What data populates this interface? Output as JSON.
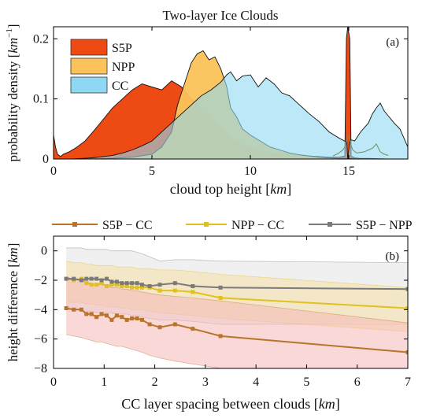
{
  "chart_data": [
    {
      "type": "area",
      "title": "Two-layer Ice Clouds",
      "panel_label": "(a)",
      "xlabel": "cloud top height",
      "xunit": "km",
      "ylabel": "probability density",
      "yunit": "km",
      "yunit_exp": "−1",
      "xlim": [
        0,
        18
      ],
      "ylim": [
        0,
        0.22
      ],
      "xticks": [
        "0",
        "5",
        "10",
        "15"
      ],
      "yticks": [
        "0",
        "0.1",
        "0.2"
      ],
      "legend_position": "top-left",
      "series": [
        {
          "name": "CC",
          "color": "#8fd8f4",
          "x": [
            0,
            1,
            1.5,
            2,
            2.5,
            3,
            3.5,
            4,
            4.5,
            5,
            5.5,
            6,
            6.5,
            7,
            7.5,
            8,
            8.5,
            8.8,
            9,
            9.3,
            9.6,
            10,
            10.4,
            10.8,
            11.2,
            11.6,
            12,
            12.5,
            13,
            13.5,
            14,
            14.5,
            14.9,
            14.95,
            15.05,
            15.1,
            15.3,
            15.6,
            16,
            16.2,
            16.4,
            16.6,
            16.8,
            17,
            17.3,
            17.6,
            18
          ],
          "y": [
            0,
            0,
            0.001,
            0.002,
            0.004,
            0.006,
            0.01,
            0.015,
            0.022,
            0.03,
            0.045,
            0.06,
            0.075,
            0.09,
            0.105,
            0.115,
            0.128,
            0.14,
            0.145,
            0.13,
            0.138,
            0.14,
            0.12,
            0.135,
            0.125,
            0.11,
            0.105,
            0.09,
            0.075,
            0.062,
            0.045,
            0.035,
            0.028,
            0.0,
            0.03,
            0.032,
            0.03,
            0.045,
            0.06,
            0.075,
            0.085,
            0.093,
            0.08,
            0.072,
            0.06,
            0.05,
            0.02
          ]
        },
        {
          "name": "NPP",
          "color": "#fbc35a",
          "x": [
            0,
            1,
            2,
            3,
            4,
            5,
            5.5,
            6,
            6.3,
            6.6,
            7,
            7.3,
            7.6,
            7.9,
            8.2,
            8.5,
            8.8,
            9,
            9.3,
            9.6,
            10,
            10.5,
            11,
            11.5,
            12,
            12.5,
            13,
            13.5,
            14,
            14.5,
            15,
            15.5,
            16,
            17,
            18
          ],
          "y": [
            0,
            0,
            0,
            0.001,
            0.003,
            0.008,
            0.02,
            0.045,
            0.09,
            0.12,
            0.16,
            0.175,
            0.18,
            0.165,
            0.17,
            0.15,
            0.12,
            0.085,
            0.07,
            0.05,
            0.04,
            0.03,
            0.02,
            0.015,
            0.01,
            0.007,
            0.005,
            0.003,
            0.002,
            0.001,
            0.001,
            0,
            0,
            0,
            0
          ]
        },
        {
          "name": "S5P",
          "color": "#ee4a14",
          "x": [
            0,
            0.1,
            0.2,
            0.35,
            0.5,
            0.8,
            1.2,
            1.6,
            2,
            2.5,
            3,
            3.5,
            4,
            4.5,
            5,
            5.5,
            6,
            6.5,
            7,
            7.5,
            8,
            8.5,
            9,
            9.5,
            10,
            10.5,
            11,
            11.5,
            12,
            12.5,
            13,
            13.5,
            14,
            14.5,
            14.8,
            14.88,
            14.95,
            15.05,
            15.12,
            15.3,
            15.6,
            16,
            17,
            18
          ],
          "y": [
            0.04,
            0.02,
            0.008,
            0.004,
            0.008,
            0.012,
            0.02,
            0.03,
            0.045,
            0.065,
            0.085,
            0.1,
            0.115,
            0.125,
            0.12,
            0.115,
            0.13,
            0.12,
            0.1,
            0.08,
            0.065,
            0.05,
            0.035,
            0.025,
            0.018,
            0.013,
            0.01,
            0.008,
            0.007,
            0.006,
            0.005,
            0.004,
            0.003,
            0.003,
            0.005,
            0.2,
            0.22,
            0.2,
            0.005,
            0.002,
            0.001,
            0.001,
            0,
            0
          ]
        }
      ],
      "overlap_colors": {
        "NPP_over_S5P": "#f6951c",
        "CC_over_S5P": "#7a9a6c",
        "CC_over_NPP": "#8aa676"
      },
      "extra_line": {
        "x": [
          14.2,
          14.5,
          14.7,
          14.8,
          14.9,
          15,
          15.1,
          15.2,
          15.4,
          15.8,
          16,
          16.2,
          16.4,
          16.6,
          16.8,
          17
        ],
        "y": [
          0.005,
          0.01,
          0.015,
          0.02,
          0.03,
          0.04,
          0.025,
          0.015,
          0.01,
          0.012,
          0.015,
          0.018,
          0.025,
          0.012,
          0.008,
          0.006
        ]
      }
    },
    {
      "type": "line",
      "panel_label": "(b)",
      "xlabel": "CC layer spacing between clouds",
      "xunit": "km",
      "ylabel": "height difference",
      "yunit": "km",
      "xlim": [
        0,
        7
      ],
      "ylim": [
        -8,
        1
      ],
      "xticks": [
        "0",
        "1",
        "2",
        "3",
        "4",
        "5",
        "6",
        "7"
      ],
      "yticks": [
        "0",
        "−2",
        "−4",
        "−6",
        "−8"
      ],
      "legend_position": "top-outside",
      "x": [
        0.25,
        0.4,
        0.55,
        0.65,
        0.75,
        0.85,
        0.95,
        1.05,
        1.15,
        1.25,
        1.35,
        1.45,
        1.55,
        1.65,
        1.75,
        1.9,
        2.1,
        2.4,
        2.75,
        3.3,
        7.0
      ],
      "series": [
        {
          "name": "S5P − CC",
          "color": "#b8742a",
          "band_color": "#f6b8b8",
          "values": [
            -3.9,
            -4.0,
            -4.0,
            -4.3,
            -4.3,
            -4.5,
            -4.3,
            -4.4,
            -4.7,
            -4.4,
            -4.5,
            -4.7,
            -4.6,
            -4.6,
            -4.7,
            -5.0,
            -5.2,
            -5.0,
            -5.3,
            -5.8,
            -6.9
          ],
          "upper": [
            -1.8,
            -1.9,
            -2.0,
            -2.1,
            -2.2,
            -2.3,
            -2.3,
            -2.4,
            -2.5,
            -2.5,
            -2.6,
            -2.6,
            -2.7,
            -2.7,
            -2.8,
            -2.9,
            -3.0,
            -3.1,
            -3.2,
            -3.4,
            -4.9
          ],
          "lower": [
            -5.7,
            -5.8,
            -5.9,
            -6.0,
            -6.1,
            -6.2,
            -6.2,
            -6.3,
            -6.4,
            -6.5,
            -6.5,
            -6.6,
            -6.7,
            -6.8,
            -6.9,
            -7.1,
            -7.3,
            -7.5,
            -7.7,
            -8.0,
            -8.0
          ]
        },
        {
          "name": "NPP − CC",
          "color": "#e0c11e",
          "band_color": "#f7e0a8",
          "values": [
            -1.9,
            -2.0,
            -1.9,
            -2.2,
            -2.3,
            -2.3,
            -2.2,
            -2.4,
            -2.3,
            -2.3,
            -2.4,
            -2.4,
            -2.5,
            -2.5,
            -2.5,
            -2.5,
            -2.7,
            -2.7,
            -2.8,
            -3.2,
            -3.9
          ],
          "upper": [
            -0.7,
            -0.8,
            -0.8,
            -0.9,
            -0.9,
            -1.0,
            -1.0,
            -1.0,
            -1.0,
            -1.1,
            -1.1,
            -1.1,
            -1.1,
            -1.2,
            -1.2,
            -1.2,
            -1.3,
            -1.3,
            -1.4,
            -1.6,
            -2.5
          ],
          "lower": [
            -3.5,
            -3.5,
            -3.5,
            -3.6,
            -3.6,
            -3.7,
            -3.7,
            -3.8,
            -3.8,
            -3.8,
            -3.9,
            -3.9,
            -4.0,
            -4.0,
            -4.0,
            -4.1,
            -4.2,
            -4.3,
            -4.4,
            -4.6,
            -5.5
          ]
        },
        {
          "name": "S5P − NPP",
          "color": "#7a7a7a",
          "band_color": "#e4e4e4",
          "values": [
            -1.9,
            -1.9,
            -2.0,
            -1.9,
            -1.9,
            -1.9,
            -2.0,
            -1.9,
            -2.1,
            -2.1,
            -2.2,
            -2.2,
            -2.2,
            -2.2,
            -2.3,
            -2.4,
            -2.3,
            -2.2,
            -2.4,
            -2.5,
            -2.6
          ],
          "upper": [
            0.2,
            0.2,
            0.2,
            0.1,
            0.1,
            0.1,
            0.1,
            0.1,
            0.0,
            0.0,
            0.0,
            0.0,
            0.0,
            -0.1,
            -0.2,
            -0.4,
            -0.7,
            -0.6,
            -0.6,
            -0.7,
            -0.8
          ],
          "lower": [
            -4.0,
            -4.0,
            -4.1,
            -4.1,
            -4.1,
            -4.2,
            -4.2,
            -4.2,
            -4.2,
            -4.3,
            -4.3,
            -4.3,
            -4.4,
            -4.4,
            -4.5,
            -4.6,
            -4.7,
            -4.7,
            -4.8,
            -5.0,
            -5.0
          ]
        }
      ]
    }
  ]
}
